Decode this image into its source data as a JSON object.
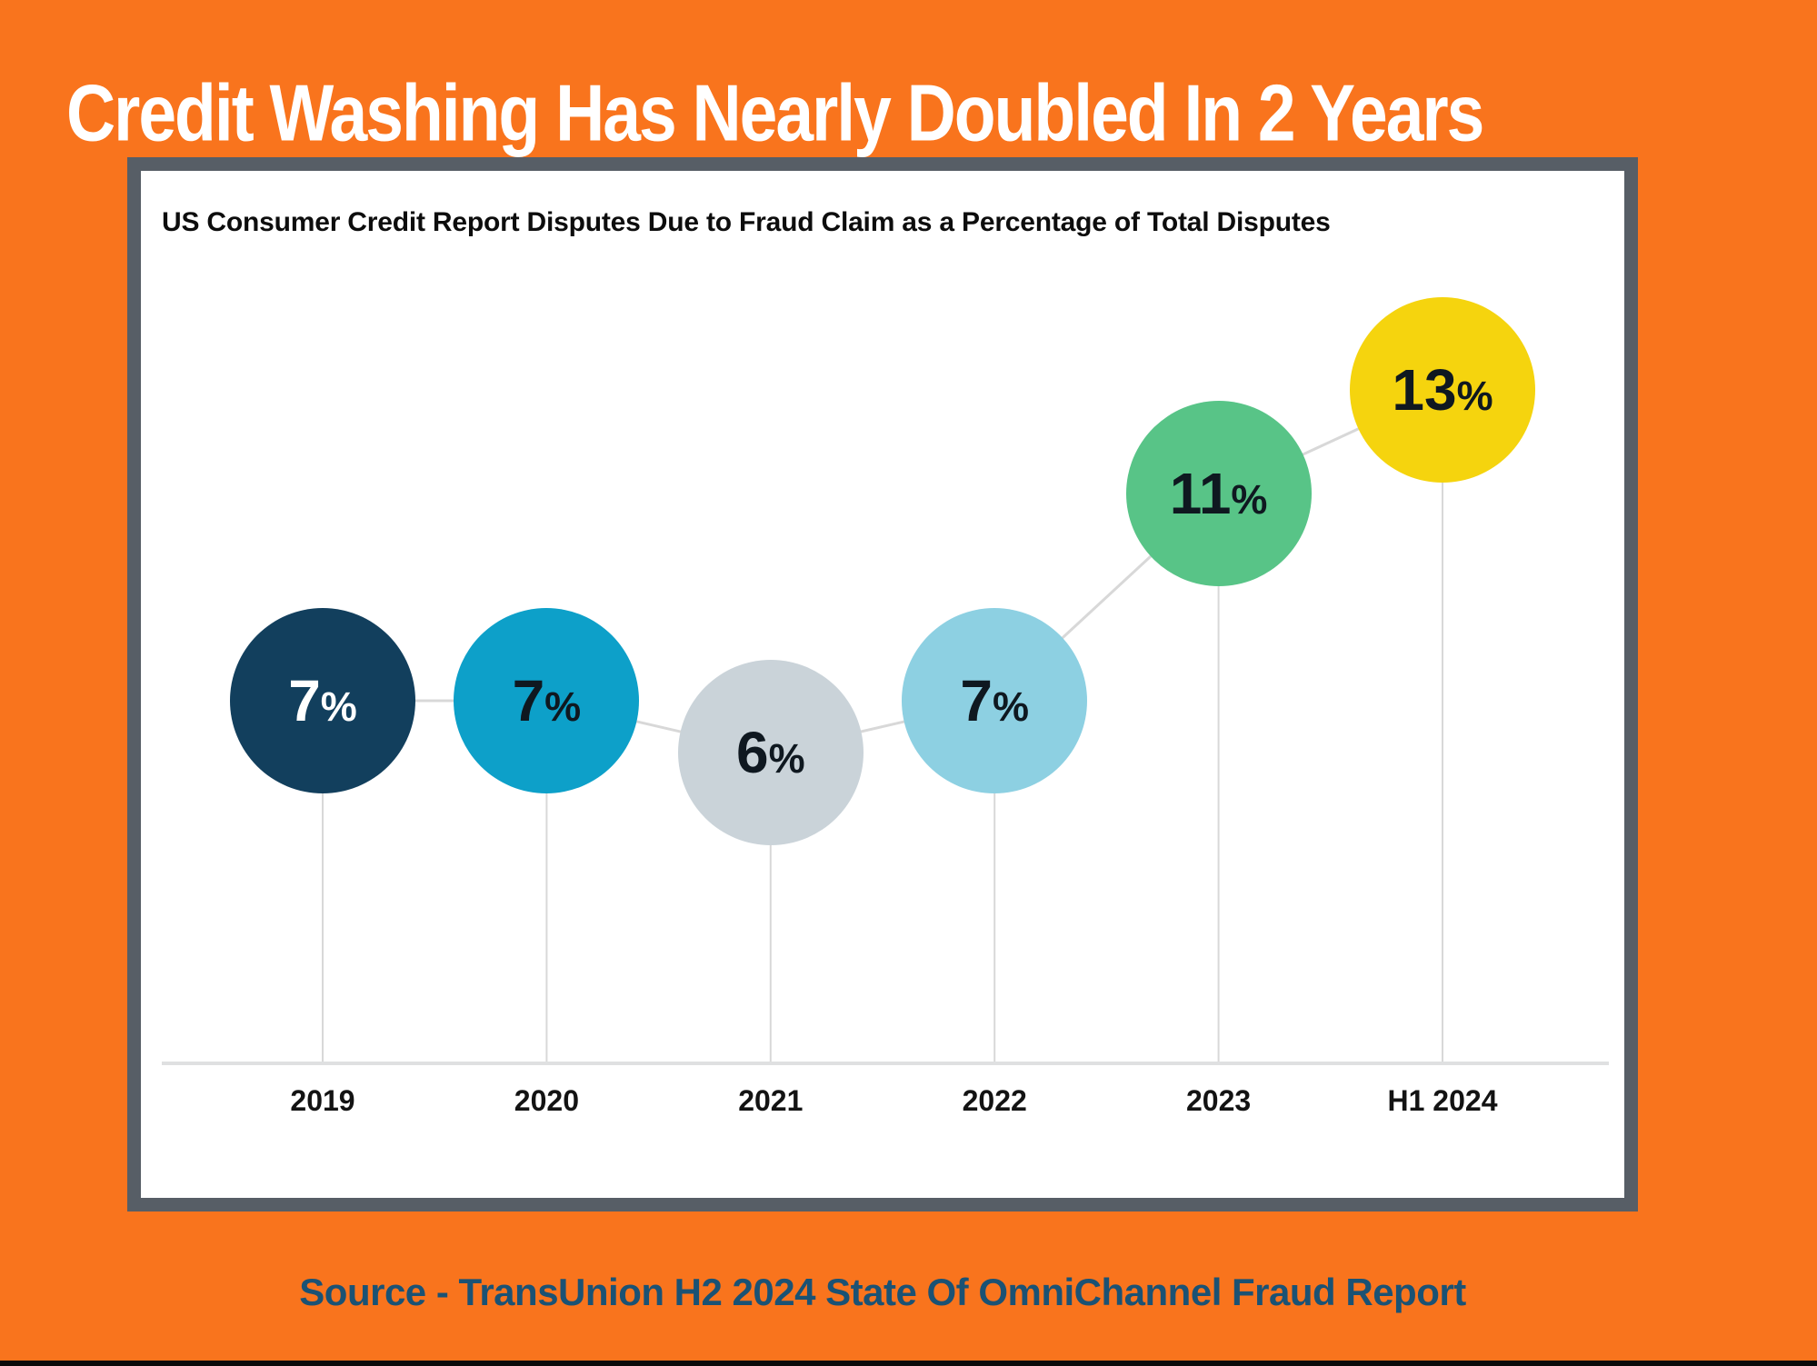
{
  "page": {
    "title": "Credit Washing Has Nearly Doubled In 2 Years",
    "source_note": "Source - TransUnion H2 2024 State Of OmniChannel Fraud Report",
    "colors": {
      "background": "#F9741D",
      "panel_background": "#FFFFFF",
      "panel_border": "#575E66",
      "title_text": "#FFFFFF",
      "chart_title_text": "#0D0D0D",
      "source_text": "#1B5274",
      "connector_line": "#D8D8D8",
      "axis_line": "#DFE0E1",
      "axis_label_text": "#131313",
      "bottom_bar": "#0A0A0A"
    }
  },
  "chart_data": {
    "type": "line",
    "marker_style": "bubble",
    "title": "US Consumer Credit Report Disputes Due to Fraud Claim as a Percentage of Total Disputes",
    "categories": [
      "2019",
      "2020",
      "2021",
      "2022",
      "2023",
      "H1 2024"
    ],
    "values": [
      7,
      7,
      6,
      7,
      11,
      13
    ],
    "unit": "%",
    "ylim": [
      0,
      14
    ],
    "grid": false,
    "legend": false,
    "points": [
      {
        "category": "2019",
        "value": 7,
        "value_label": "7",
        "suffix": "%",
        "bubble_color": "#123F5D",
        "text_color": "#FFFFFF"
      },
      {
        "category": "2020",
        "value": 7,
        "value_label": "7",
        "suffix": "%",
        "bubble_color": "#0DA0C9",
        "text_color": "#0F1820"
      },
      {
        "category": "2021",
        "value": 6,
        "value_label": "6",
        "suffix": "%",
        "bubble_color": "#CAD3D9",
        "text_color": "#0F1820"
      },
      {
        "category": "2022",
        "value": 7,
        "value_label": "7",
        "suffix": "%",
        "bubble_color": "#8DD0E2",
        "text_color": "#0F1820"
      },
      {
        "category": "2023",
        "value": 11,
        "value_label": "11",
        "suffix": "%",
        "bubble_color": "#58C487",
        "text_color": "#0F1820"
      },
      {
        "category": "H1 2024",
        "value": 13,
        "value_label": "13",
        "suffix": "%",
        "bubble_color": "#F5D40E",
        "text_color": "#0F1820"
      }
    ]
  }
}
